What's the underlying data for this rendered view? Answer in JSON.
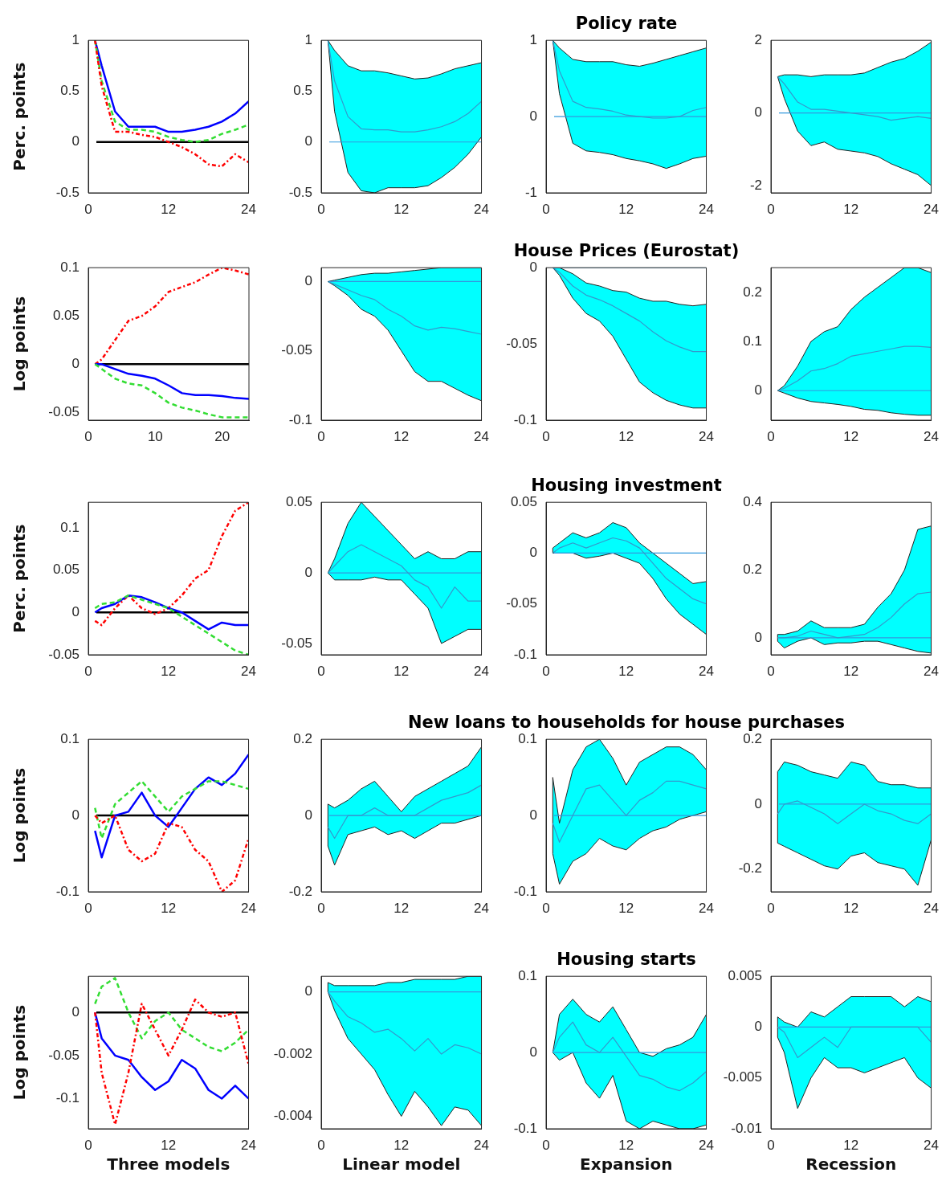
{
  "chart_data": [
    {
      "type": "line",
      "ylabel": "Perc. points",
      "x": [
        1,
        2,
        4,
        6,
        8,
        10,
        12,
        14,
        16,
        18,
        20,
        22,
        24
      ],
      "xlim": [
        0,
        24
      ],
      "xticks": [
        0,
        12,
        24
      ],
      "ylim": [
        -0.5,
        1
      ],
      "yticks": [
        -0.5,
        0,
        0.5,
        1
      ],
      "grid": false,
      "legend": false,
      "ref_lines": [
        {
          "axis": "y",
          "value": 0,
          "color": "#000000"
        }
      ],
      "series": [
        {
          "color": "#0000ff",
          "line_style": "solid",
          "values": [
            1,
            0.75,
            0.3,
            0.15,
            0.15,
            0.15,
            0.1,
            0.1,
            0.12,
            0.15,
            0.2,
            0.28,
            0.4
          ]
        },
        {
          "color": "#33dd33",
          "line_style": "dashed",
          "values": [
            1,
            0.6,
            0.2,
            0.12,
            0.12,
            0.1,
            0.05,
            0.02,
            0,
            0.02,
            0.08,
            0.12,
            0.17
          ]
        },
        {
          "color": "#ff0000",
          "line_style": "dashdot",
          "values": [
            1,
            0.55,
            0.1,
            0.1,
            0.07,
            0.05,
            0,
            -0.05,
            -0.12,
            -0.22,
            -0.24,
            -0.12,
            -0.2
          ]
        }
      ]
    },
    {
      "type": "line",
      "x": [
        1,
        2,
        4,
        6,
        8,
        10,
        12,
        14,
        16,
        18,
        20,
        22,
        24
      ],
      "xlim": [
        0,
        24
      ],
      "xticks": [
        0,
        12,
        24
      ],
      "ylim": [
        -0.5,
        1
      ],
      "yticks": [
        -0.5,
        0,
        0.5,
        1
      ],
      "grid": false,
      "legend": false,
      "ref_lines": [
        {
          "axis": "y",
          "value": 0,
          "color": "#3399dd"
        }
      ],
      "series": [
        {
          "color": "#3399cc",
          "values": [
            1,
            0.6,
            0.25,
            0.13,
            0.12,
            0.12,
            0.1,
            0.1,
            0.12,
            0.15,
            0.2,
            0.28,
            0.4
          ],
          "lower": [
            1,
            0.3,
            -0.3,
            -0.48,
            -0.5,
            -0.45,
            -0.45,
            -0.45,
            -0.43,
            -0.35,
            -0.25,
            -0.12,
            0.05
          ],
          "upper": [
            1,
            0.9,
            0.75,
            0.7,
            0.7,
            0.68,
            0.65,
            0.62,
            0.63,
            0.67,
            0.72,
            0.75,
            0.78
          ]
        }
      ]
    },
    {
      "type": "line",
      "title": "Policy rate",
      "x": [
        1,
        2,
        4,
        6,
        8,
        10,
        12,
        14,
        16,
        18,
        20,
        22,
        24
      ],
      "xlim": [
        0,
        24
      ],
      "xticks": [
        0,
        12,
        24
      ],
      "ylim": [
        -1,
        1
      ],
      "yticks": [
        -1,
        0,
        1
      ],
      "grid": false,
      "legend": false,
      "ref_lines": [
        {
          "axis": "y",
          "value": 0,
          "color": "#3399dd"
        }
      ],
      "series": [
        {
          "color": "#3399cc",
          "values": [
            1,
            0.6,
            0.2,
            0.12,
            0.1,
            0.07,
            0.02,
            0,
            -0.02,
            -0.02,
            0,
            0.08,
            0.12
          ],
          "lower": [
            1,
            0.3,
            -0.35,
            -0.45,
            -0.47,
            -0.5,
            -0.55,
            -0.58,
            -0.62,
            -0.68,
            -0.62,
            -0.55,
            -0.52
          ],
          "upper": [
            1,
            0.9,
            0.75,
            0.72,
            0.72,
            0.72,
            0.68,
            0.66,
            0.7,
            0.75,
            0.8,
            0.85,
            0.9
          ]
        }
      ]
    },
    {
      "type": "line",
      "x": [
        1,
        2,
        4,
        6,
        8,
        10,
        12,
        14,
        16,
        18,
        20,
        22,
        24
      ],
      "xlim": [
        0,
        24
      ],
      "xticks": [
        0,
        12,
        24
      ],
      "ylim": [
        -2.2,
        2
      ],
      "yticks": [
        -2,
        0,
        2
      ],
      "grid": false,
      "legend": false,
      "ref_lines": [
        {
          "axis": "y",
          "value": 0,
          "color": "#3399dd"
        }
      ],
      "series": [
        {
          "color": "#3399cc",
          "values": [
            1,
            0.8,
            0.3,
            0.1,
            0.1,
            0.05,
            0,
            -0.05,
            -0.1,
            -0.2,
            -0.15,
            -0.1,
            -0.15
          ],
          "lower": [
            1,
            0.4,
            -0.5,
            -0.9,
            -0.8,
            -1,
            -1.05,
            -1.1,
            -1.2,
            -1.4,
            -1.55,
            -1.7,
            -2
          ],
          "upper": [
            1,
            1.05,
            1.05,
            1,
            1.05,
            1.05,
            1.05,
            1.1,
            1.25,
            1.4,
            1.5,
            1.7,
            1.95
          ]
        }
      ]
    },
    {
      "type": "line",
      "ylabel": "Log points",
      "x": [
        1,
        2,
        4,
        6,
        8,
        10,
        12,
        14,
        16,
        18,
        20,
        22,
        24
      ],
      "xlim": [
        0,
        24
      ],
      "xticks": [
        0,
        10,
        20
      ],
      "ylim": [
        -0.058,
        0.1
      ],
      "yticks": [
        -0.05,
        0,
        0.05,
        0.1
      ],
      "grid": false,
      "legend": false,
      "ref_lines": [
        {
          "axis": "y",
          "value": 0,
          "color": "#000000"
        }
      ],
      "series": [
        {
          "color": "#ff0000",
          "line_style": "dashdot",
          "values": [
            0,
            0.005,
            0.025,
            0.045,
            0.05,
            0.06,
            0.075,
            0.08,
            0.085,
            0.093,
            0.1,
            0.097,
            0.093
          ]
        },
        {
          "color": "#0000ff",
          "line_style": "solid",
          "values": [
            0,
            0,
            -0.005,
            -0.01,
            -0.012,
            -0.015,
            -0.022,
            -0.03,
            -0.032,
            -0.032,
            -0.033,
            -0.035,
            -0.036
          ]
        },
        {
          "color": "#33dd33",
          "line_style": "dashed",
          "values": [
            0,
            -0.005,
            -0.015,
            -0.02,
            -0.022,
            -0.03,
            -0.04,
            -0.045,
            -0.048,
            -0.052,
            -0.055,
            -0.055,
            -0.055
          ]
        }
      ]
    },
    {
      "type": "line",
      "x": [
        1,
        2,
        4,
        6,
        8,
        10,
        12,
        14,
        16,
        18,
        20,
        22,
        24
      ],
      "xlim": [
        0,
        24
      ],
      "xticks": [
        0,
        12,
        24
      ],
      "ylim": [
        -0.1,
        0.01
      ],
      "yticks": [
        -0.1,
        -0.05,
        0
      ],
      "grid": false,
      "legend": false,
      "ref_lines": [
        {
          "axis": "y",
          "value": 0,
          "color": "#3399dd"
        }
      ],
      "series": [
        {
          "color": "#3399cc",
          "values": [
            0,
            -0.002,
            -0.006,
            -0.01,
            -0.013,
            -0.02,
            -0.025,
            -0.032,
            -0.035,
            -0.033,
            -0.034,
            -0.036,
            -0.038
          ],
          "lower": [
            0,
            -0.003,
            -0.01,
            -0.02,
            -0.025,
            -0.035,
            -0.05,
            -0.065,
            -0.072,
            -0.072,
            -0.077,
            -0.082,
            -0.086
          ],
          "upper": [
            0,
            0.001,
            0.003,
            0.005,
            0.006,
            0.006,
            0.007,
            0.008,
            0.009,
            0.01,
            0.01,
            0.01,
            0.01
          ]
        }
      ]
    },
    {
      "type": "line",
      "title": "House Prices (Eurostat)",
      "x": [
        1,
        2,
        4,
        6,
        8,
        10,
        12,
        14,
        16,
        18,
        20,
        22,
        24
      ],
      "xlim": [
        0,
        24
      ],
      "xticks": [
        0,
        12,
        24
      ],
      "ylim": [
        -0.1,
        0
      ],
      "yticks": [
        -0.1,
        -0.05,
        0
      ],
      "grid": false,
      "legend": false,
      "ref_lines": [
        {
          "axis": "y",
          "value": 0,
          "color": "#3399dd"
        }
      ],
      "series": [
        {
          "color": "#3399cc",
          "values": [
            0,
            -0.003,
            -0.012,
            -0.018,
            -0.021,
            -0.025,
            -0.03,
            -0.035,
            -0.042,
            -0.048,
            -0.052,
            -0.055,
            -0.055
          ],
          "lower": [
            0,
            -0.005,
            -0.02,
            -0.03,
            -0.035,
            -0.045,
            -0.06,
            -0.075,
            -0.082,
            -0.087,
            -0.09,
            -0.092,
            -0.092
          ],
          "upper": [
            0,
            0,
            -0.004,
            -0.01,
            -0.012,
            -0.015,
            -0.016,
            -0.02,
            -0.022,
            -0.022,
            -0.024,
            -0.025,
            -0.024
          ]
        }
      ]
    },
    {
      "type": "line",
      "x": [
        1,
        2,
        4,
        6,
        8,
        10,
        12,
        14,
        16,
        18,
        20,
        22,
        24
      ],
      "xlim": [
        0,
        24
      ],
      "xticks": [
        0,
        12,
        24
      ],
      "ylim": [
        -0.06,
        0.25
      ],
      "yticks": [
        0,
        0.1,
        0.2
      ],
      "grid": false,
      "legend": false,
      "ref_lines": [
        {
          "axis": "y",
          "value": 0,
          "color": "#3399dd"
        }
      ],
      "series": [
        {
          "color": "#3399cc",
          "values": [
            0,
            0.005,
            0.02,
            0.04,
            0.045,
            0.055,
            0.07,
            0.075,
            0.08,
            0.085,
            0.09,
            0.09,
            0.088
          ],
          "lower": [
            0,
            -0.005,
            -0.015,
            -0.022,
            -0.025,
            -0.028,
            -0.032,
            -0.038,
            -0.04,
            -0.045,
            -0.048,
            -0.05,
            -0.05
          ],
          "upper": [
            0,
            0.01,
            0.05,
            0.1,
            0.12,
            0.13,
            0.165,
            0.19,
            0.21,
            0.23,
            0.25,
            0.25,
            0.24
          ]
        }
      ]
    },
    {
      "type": "line",
      "ylabel": "Perc. points",
      "x": [
        1,
        2,
        4,
        6,
        8,
        10,
        12,
        14,
        16,
        18,
        20,
        22,
        24
      ],
      "xlim": [
        0,
        24
      ],
      "xticks": [
        0,
        12,
        24
      ],
      "ylim": [
        -0.05,
        0.13
      ],
      "yticks": [
        -0.05,
        0,
        0.05,
        0.1
      ],
      "grid": false,
      "legend": false,
      "ref_lines": [
        {
          "axis": "y",
          "value": 0,
          "color": "#000000"
        }
      ],
      "series": [
        {
          "color": "#ff0000",
          "line_style": "dashdot",
          "values": [
            -0.01,
            -0.015,
            0.005,
            0.02,
            0.005,
            -0.002,
            0.005,
            0.02,
            0.04,
            0.05,
            0.09,
            0.12,
            0.13
          ]
        },
        {
          "color": "#0000ff",
          "line_style": "solid",
          "values": [
            0,
            0.005,
            0.01,
            0.02,
            0.018,
            0.012,
            0.005,
            0,
            -0.01,
            -0.02,
            -0.012,
            -0.015,
            -0.015
          ]
        },
        {
          "color": "#33dd33",
          "line_style": "dashed",
          "values": [
            0.005,
            0.01,
            0.012,
            0.02,
            0.015,
            0.01,
            0.005,
            -0.005,
            -0.015,
            -0.025,
            -0.035,
            -0.045,
            -0.05
          ]
        }
      ]
    },
    {
      "type": "line",
      "x": [
        1,
        2,
        4,
        6,
        8,
        10,
        12,
        14,
        16,
        18,
        20,
        22,
        24
      ],
      "xlim": [
        0,
        24
      ],
      "xticks": [
        0,
        12,
        24
      ],
      "ylim": [
        -0.058,
        0.05
      ],
      "yticks": [
        -0.05,
        0,
        0.05
      ],
      "grid": false,
      "legend": false,
      "ref_lines": [
        {
          "axis": "y",
          "value": 0,
          "color": "#3399dd"
        }
      ],
      "series": [
        {
          "color": "#3399cc",
          "values": [
            0,
            0.005,
            0.015,
            0.02,
            0.015,
            0.01,
            0.005,
            -0.005,
            -0.01,
            -0.025,
            -0.01,
            -0.02,
            -0.02
          ],
          "lower": [
            0,
            -0.005,
            -0.005,
            -0.005,
            -0.003,
            -0.005,
            -0.005,
            -0.015,
            -0.025,
            -0.05,
            -0.045,
            -0.04,
            -0.04
          ],
          "upper": [
            0,
            0.01,
            0.035,
            0.05,
            0.04,
            0.03,
            0.02,
            0.01,
            0.015,
            0.01,
            0.01,
            0.015,
            0.015
          ]
        }
      ]
    },
    {
      "type": "line",
      "title": "Housing investment",
      "x": [
        1,
        2,
        4,
        6,
        8,
        10,
        12,
        14,
        16,
        18,
        20,
        22,
        24
      ],
      "xlim": [
        0,
        24
      ],
      "xticks": [
        0,
        12,
        24
      ],
      "ylim": [
        -0.1,
        0.05
      ],
      "yticks": [
        -0.1,
        -0.05,
        0,
        0.05
      ],
      "grid": false,
      "legend": false,
      "ref_lines": [
        {
          "axis": "y",
          "value": 0,
          "color": "#3399dd"
        }
      ],
      "series": [
        {
          "color": "#3399cc",
          "values": [
            0,
            0.005,
            0.01,
            0.005,
            0.01,
            0.015,
            0.012,
            0.005,
            -0.01,
            -0.025,
            -0.035,
            -0.045,
            -0.05
          ],
          "lower": [
            0,
            0,
            0,
            -0.005,
            -0.003,
            0,
            -0.005,
            -0.01,
            -0.025,
            -0.045,
            -0.06,
            -0.07,
            -0.08
          ],
          "upper": [
            0.005,
            0.01,
            0.02,
            0.015,
            0.02,
            0.03,
            0.025,
            0.01,
            0,
            -0.01,
            -0.02,
            -0.03,
            -0.028
          ]
        }
      ]
    },
    {
      "type": "line",
      "x": [
        1,
        2,
        4,
        6,
        8,
        10,
        12,
        14,
        16,
        18,
        20,
        22,
        24
      ],
      "xlim": [
        0,
        24
      ],
      "xticks": [
        0,
        12,
        24
      ],
      "ylim": [
        -0.05,
        0.4
      ],
      "yticks": [
        0,
        0.2,
        0.4
      ],
      "grid": false,
      "legend": false,
      "ref_lines": [
        {
          "axis": "y",
          "value": 0,
          "color": "#3399dd"
        }
      ],
      "series": [
        {
          "color": "#3399cc",
          "values": [
            0,
            0,
            0.005,
            0.02,
            0.01,
            0,
            0.005,
            0.01,
            0.03,
            0.06,
            0.1,
            0.13,
            0.135
          ],
          "lower": [
            -0.01,
            -0.03,
            -0.01,
            0,
            -0.02,
            -0.015,
            -0.015,
            -0.01,
            -0.01,
            -0.02,
            -0.03,
            -0.04,
            -0.045
          ],
          "upper": [
            0.01,
            0.01,
            0.02,
            0.05,
            0.03,
            0.03,
            0.03,
            0.04,
            0.09,
            0.13,
            0.2,
            0.32,
            0.33
          ]
        }
      ]
    },
    {
      "type": "line",
      "ylabel": "Log points",
      "x": [
        1,
        2,
        4,
        6,
        8,
        10,
        12,
        14,
        16,
        18,
        20,
        22,
        24
      ],
      "xlim": [
        0,
        24
      ],
      "xticks": [
        0,
        12,
        24
      ],
      "ylim": [
        -0.1,
        0.1
      ],
      "yticks": [
        -0.1,
        0,
        0.1
      ],
      "grid": false,
      "legend": false,
      "ref_lines": [
        {
          "axis": "y",
          "value": 0,
          "color": "#000000"
        }
      ],
      "series": [
        {
          "color": "#0000ff",
          "line_style": "solid",
          "values": [
            -0.02,
            -0.055,
            0,
            0.005,
            0.03,
            0,
            -0.015,
            0.01,
            0.035,
            0.05,
            0.04,
            0.055,
            0.08
          ]
        },
        {
          "color": "#33dd33",
          "line_style": "dashed",
          "values": [
            0.01,
            -0.03,
            0.015,
            0.03,
            0.045,
            0.025,
            0.005,
            0.025,
            0.035,
            0.045,
            0.045,
            0.04,
            0.035
          ]
        },
        {
          "color": "#ff0000",
          "line_style": "dashdot",
          "values": [
            0,
            -0.01,
            0,
            -0.045,
            -0.06,
            -0.05,
            -0.01,
            -0.015,
            -0.045,
            -0.06,
            -0.1,
            -0.085,
            -0.03
          ]
        }
      ]
    },
    {
      "type": "line",
      "x": [
        1,
        2,
        4,
        6,
        8,
        10,
        12,
        14,
        16,
        18,
        20,
        22,
        24
      ],
      "xlim": [
        0,
        24
      ],
      "xticks": [
        0,
        12,
        24
      ],
      "ylim": [
        -0.2,
        0.2
      ],
      "yticks": [
        -0.2,
        0,
        0.2
      ],
      "grid": false,
      "legend": false,
      "ref_lines": [
        {
          "axis": "y",
          "value": 0,
          "color": "#3399dd"
        }
      ],
      "series": [
        {
          "color": "#3399cc",
          "values": [
            -0.03,
            -0.06,
            0,
            0,
            0.02,
            0,
            0,
            0,
            0.02,
            0.04,
            0.05,
            0.06,
            0.08
          ],
          "lower": [
            -0.08,
            -0.13,
            -0.05,
            -0.04,
            -0.03,
            -0.05,
            -0.04,
            -0.06,
            -0.04,
            -0.02,
            -0.02,
            -0.01,
            0
          ],
          "upper": [
            0.03,
            0.02,
            0.04,
            0.07,
            0.09,
            0.05,
            0.01,
            0.05,
            0.07,
            0.09,
            0.11,
            0.13,
            0.18
          ]
        }
      ]
    },
    {
      "type": "line",
      "title": "New loans to households for house purchases",
      "x": [
        1,
        2,
        4,
        6,
        8,
        10,
        12,
        14,
        16,
        18,
        20,
        22,
        24
      ],
      "xlim": [
        0,
        24
      ],
      "xticks": [
        0,
        12,
        24
      ],
      "ylim": [
        -0.1,
        0.1
      ],
      "yticks": [
        -0.1,
        0,
        0.1
      ],
      "grid": false,
      "legend": false,
      "ref_lines": [
        {
          "axis": "y",
          "value": 0,
          "color": "#3399dd"
        }
      ],
      "series": [
        {
          "color": "#3399cc",
          "values": [
            -0.01,
            -0.035,
            0,
            0.035,
            0.04,
            0.02,
            0,
            0.02,
            0.03,
            0.045,
            0.045,
            0.04,
            0.035
          ],
          "lower": [
            -0.05,
            -0.09,
            -0.06,
            -0.05,
            -0.03,
            -0.04,
            -0.045,
            -0.03,
            -0.02,
            -0.015,
            -0.005,
            0,
            0.005
          ],
          "upper": [
            0.05,
            -0.01,
            0.06,
            0.09,
            0.1,
            0.075,
            0.04,
            0.07,
            0.08,
            0.09,
            0.09,
            0.08,
            0.06
          ]
        }
      ]
    },
    {
      "type": "line",
      "x": [
        1,
        2,
        4,
        6,
        8,
        10,
        12,
        14,
        16,
        18,
        20,
        22,
        24
      ],
      "xlim": [
        0,
        24
      ],
      "xticks": [
        0,
        12,
        24
      ],
      "ylim": [
        -0.27,
        0.2
      ],
      "yticks": [
        -0.2,
        0,
        0.2
      ],
      "grid": false,
      "legend": false,
      "ref_lines": [
        {
          "axis": "y",
          "value": 0,
          "color": "#3399dd"
        }
      ],
      "series": [
        {
          "color": "#3399cc",
          "values": [
            -0.03,
            0,
            0.01,
            -0.01,
            -0.03,
            -0.06,
            -0.03,
            0,
            -0.02,
            -0.03,
            -0.05,
            -0.06,
            -0.03
          ],
          "lower": [
            -0.12,
            -0.13,
            -0.15,
            -0.17,
            -0.19,
            -0.2,
            -0.16,
            -0.15,
            -0.18,
            -0.19,
            -0.2,
            -0.25,
            -0.11
          ],
          "upper": [
            0.1,
            0.13,
            0.12,
            0.1,
            0.09,
            0.08,
            0.13,
            0.12,
            0.07,
            0.06,
            0.06,
            0.05,
            0.05
          ]
        }
      ]
    },
    {
      "type": "line",
      "ylabel": "Log points",
      "xlabel": "Three models",
      "x": [
        1,
        2,
        4,
        6,
        8,
        10,
        12,
        14,
        16,
        18,
        20,
        22,
        24
      ],
      "xlim": [
        0,
        24
      ],
      "xticks": [
        0,
        12,
        24
      ],
      "ylim": [
        -0.135,
        0.042
      ],
      "yticks": [
        -0.1,
        -0.05,
        0
      ],
      "grid": false,
      "legend": false,
      "ref_lines": [
        {
          "axis": "y",
          "value": 0,
          "color": "#000000"
        }
      ],
      "series": [
        {
          "color": "#33dd33",
          "line_style": "dashed",
          "values": [
            0.01,
            0.03,
            0.04,
            0,
            -0.03,
            -0.01,
            0,
            -0.02,
            -0.03,
            -0.04,
            -0.045,
            -0.035,
            -0.02
          ]
        },
        {
          "color": "#0000ff",
          "line_style": "solid",
          "values": [
            0,
            -0.03,
            -0.05,
            -0.055,
            -0.075,
            -0.09,
            -0.08,
            -0.055,
            -0.065,
            -0.09,
            -0.1,
            -0.085,
            -0.1
          ]
        },
        {
          "color": "#ff0000",
          "line_style": "dashdot",
          "values": [
            0,
            -0.07,
            -0.13,
            -0.07,
            0.01,
            -0.02,
            -0.05,
            -0.02,
            0.015,
            0,
            -0.005,
            0,
            -0.06
          ]
        }
      ]
    },
    {
      "type": "line",
      "xlabel": "Linear model",
      "x": [
        1,
        2,
        4,
        6,
        8,
        10,
        12,
        14,
        16,
        18,
        20,
        22,
        24
      ],
      "xlim": [
        0,
        24
      ],
      "xticks": [
        0,
        12,
        24
      ],
      "ylim": [
        -0.0044,
        0.0005
      ],
      "yticks": [
        -0.004,
        -0.002,
        0
      ],
      "grid": false,
      "legend": false,
      "ref_lines": [
        {
          "axis": "y",
          "value": 0,
          "color": "#3399dd"
        }
      ],
      "series": [
        {
          "color": "#3399cc",
          "values": [
            0,
            -0.0003,
            -0.0008,
            -0.001,
            -0.0013,
            -0.0012,
            -0.0015,
            -0.0019,
            -0.0015,
            -0.002,
            -0.0017,
            -0.0018,
            -0.002
          ],
          "lower": [
            0,
            -0.0006,
            -0.0015,
            -0.002,
            -0.0025,
            -0.0033,
            -0.004,
            -0.0032,
            -0.0037,
            -0.0043,
            -0.0037,
            -0.0038,
            -0.0043
          ],
          "upper": [
            0.0003,
            0.0002,
            0.0002,
            0.0002,
            0.0002,
            0.0003,
            0.0003,
            0.0004,
            0.0004,
            0.0004,
            0.0004,
            0.0005,
            0.0005
          ]
        }
      ]
    },
    {
      "type": "line",
      "title": "Housing starts",
      "xlabel": "Expansion",
      "x": [
        1,
        2,
        4,
        6,
        8,
        10,
        12,
        14,
        16,
        18,
        20,
        22,
        24
      ],
      "xlim": [
        0,
        24
      ],
      "xticks": [
        0,
        12,
        24
      ],
      "ylim": [
        -0.1,
        0.1
      ],
      "yticks": [
        -0.1,
        0,
        0.1
      ],
      "grid": false,
      "legend": false,
      "ref_lines": [
        {
          "axis": "y",
          "value": 0,
          "color": "#3399dd"
        }
      ],
      "series": [
        {
          "color": "#3399cc",
          "values": [
            0,
            0.02,
            0.04,
            0.01,
            0,
            0.02,
            -0.005,
            -0.03,
            -0.035,
            -0.045,
            -0.05,
            -0.04,
            -0.025
          ],
          "lower": [
            0,
            -0.01,
            0,
            -0.04,
            -0.06,
            -0.03,
            -0.09,
            -0.1,
            -0.09,
            -0.095,
            -0.1,
            -0.1,
            -0.095
          ],
          "upper": [
            0,
            0.05,
            0.07,
            0.05,
            0.04,
            0.06,
            0.03,
            0,
            -0.005,
            0.005,
            0.01,
            0.02,
            0.05
          ]
        }
      ]
    },
    {
      "type": "line",
      "xlabel": "Recession",
      "x": [
        1,
        2,
        4,
        6,
        8,
        10,
        12,
        14,
        16,
        18,
        20,
        22,
        24
      ],
      "xlim": [
        0,
        24
      ],
      "xticks": [
        0,
        12,
        24
      ],
      "ylim": [
        -0.01,
        0.005
      ],
      "yticks": [
        -0.01,
        -0.005,
        0,
        0.005
      ],
      "grid": false,
      "legend": false,
      "ref_lines": [
        {
          "axis": "y",
          "value": 0,
          "color": "#3399dd"
        }
      ],
      "series": [
        {
          "color": "#3399cc",
          "values": [
            0,
            -0.0005,
            -0.003,
            -0.002,
            -0.001,
            -0.002,
            0,
            0,
            0,
            0,
            0,
            0,
            -0.0015
          ],
          "lower": [
            -0.001,
            -0.0025,
            -0.008,
            -0.005,
            -0.003,
            -0.004,
            -0.004,
            -0.0045,
            -0.004,
            -0.0035,
            -0.003,
            -0.005,
            -0.006
          ],
          "upper": [
            0.001,
            0.0005,
            0,
            0.0015,
            0.001,
            0.002,
            0.003,
            0.003,
            0.003,
            0.003,
            0.002,
            0.003,
            0.0025
          ]
        }
      ]
    }
  ]
}
